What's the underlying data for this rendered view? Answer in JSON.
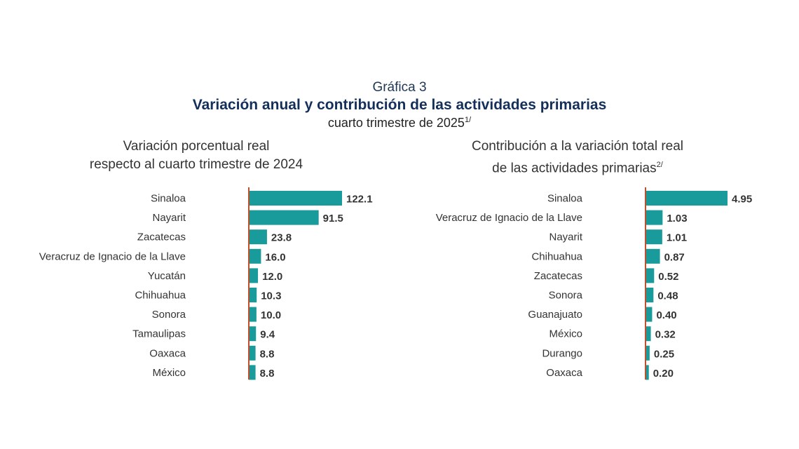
{
  "kicker": "Gráfica 3",
  "title": "Variación anual y contribución de las actividades primarias",
  "subtitle": "cuarto trimestre de 2025",
  "subtitle_note": "1/",
  "colors": {
    "bar": "#1a9b9b",
    "axis": "#c0502d",
    "title": "#14305a"
  },
  "chart_data": [
    {
      "type": "bar",
      "orientation": "horizontal",
      "title_line1": "Variación porcentual real",
      "title_line2": "respecto al cuarto trimestre de 2024",
      "categories": [
        "Sinaloa",
        "Nayarit",
        "Zacatecas",
        "Veracruz de Ignacio de la Llave",
        "Yucatán",
        "Chihuahua",
        "Sonora",
        "Tamaulipas",
        "Oaxaca",
        "México"
      ],
      "values": [
        122.1,
        91.5,
        23.8,
        16.0,
        12.0,
        10.3,
        10.0,
        9.4,
        8.8,
        8.8
      ],
      "labels": [
        "122.1",
        "91.5",
        "23.8",
        "16.0",
        "12.0",
        "10.3",
        "10.0",
        "9.4",
        "8.8",
        "8.8"
      ]
    },
    {
      "type": "bar",
      "orientation": "horizontal",
      "title_line1": "Contribución a la variación total real",
      "title_line2": "de las actividades primarias",
      "title_note": "2/",
      "categories": [
        "Sinaloa",
        "Veracruz de Ignacio de la Llave",
        "Nayarit",
        "Chihuahua",
        "Zacatecas",
        "Sonora",
        "Guanajuato",
        "México",
        "Durango",
        "Oaxaca"
      ],
      "values": [
        4.95,
        1.03,
        1.01,
        0.87,
        0.52,
        0.48,
        0.4,
        0.32,
        0.25,
        0.2
      ],
      "labels": [
        "4.95",
        "1.03",
        "1.01",
        "0.87",
        "0.52",
        "0.48",
        "0.40",
        "0.32",
        "0.25",
        "0.20"
      ]
    }
  ]
}
